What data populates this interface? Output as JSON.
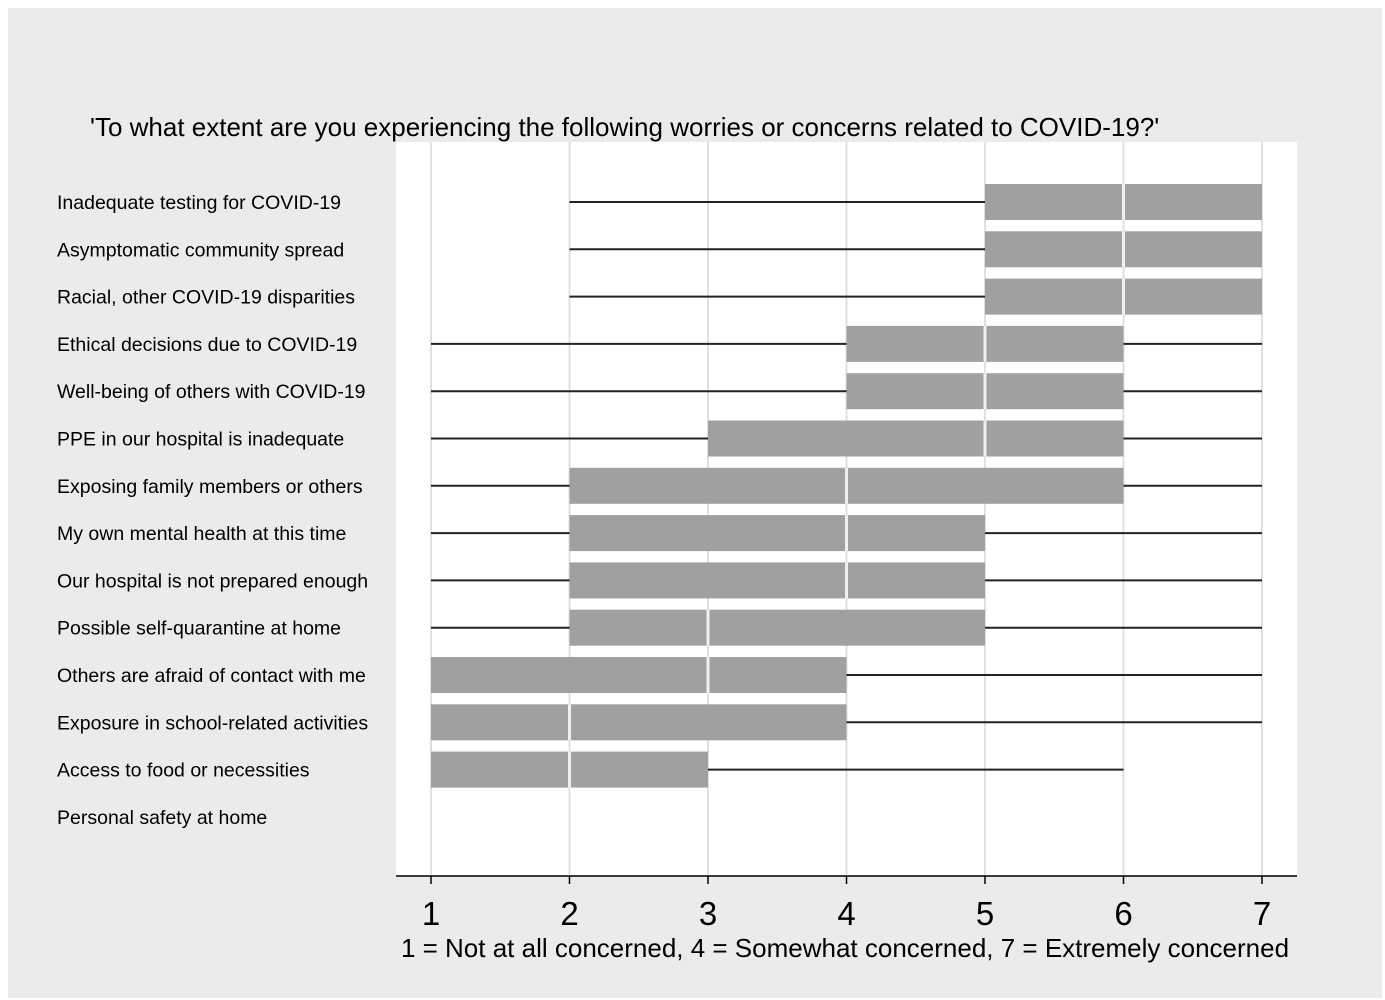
{
  "chart_data": {
    "type": "box",
    "title": "'To what extent are you experiencing the following worries or concerns related to COVID-19?'",
    "xlabel": "1 = Not at all concerned, 4 = Somewhat concerned, 7 = Extremely concerned",
    "xlim": [
      1,
      7
    ],
    "xticks": [
      "1",
      "2",
      "3",
      "4",
      "5",
      "6",
      "7"
    ],
    "grid": true,
    "box_color": "#a0a0a0",
    "items": [
      {
        "label": "Inadequate testing for COVID-19",
        "min": 2,
        "q1": 5,
        "median": 6,
        "q3": 7,
        "max": 7
      },
      {
        "label": "Asymptomatic community spread",
        "min": 2,
        "q1": 5,
        "median": 6,
        "q3": 7,
        "max": 7
      },
      {
        "label": "Racial, other COVID-19 disparities",
        "min": 2,
        "q1": 5,
        "median": 6,
        "q3": 7,
        "max": 7
      },
      {
        "label": "Ethical decisions due to COVID-19",
        "min": 1,
        "q1": 4,
        "median": 5,
        "q3": 6,
        "max": 7
      },
      {
        "label": "Well-being of others with COVID-19",
        "min": 1,
        "q1": 4,
        "median": 5,
        "q3": 6,
        "max": 7
      },
      {
        "label": "PPE in our hospital is inadequate",
        "min": 1,
        "q1": 3,
        "median": 5,
        "q3": 6,
        "max": 7
      },
      {
        "label": "Exposing family members or others",
        "min": 1,
        "q1": 2,
        "median": 4,
        "q3": 6,
        "max": 7
      },
      {
        "label": "My own mental health at this time",
        "min": 1,
        "q1": 2,
        "median": 4,
        "q3": 5,
        "max": 7
      },
      {
        "label": "Our hospital is not prepared enough",
        "min": 1,
        "q1": 2,
        "median": 4,
        "q3": 5,
        "max": 7
      },
      {
        "label": "Possible self-quarantine at home",
        "min": 1,
        "q1": 2,
        "median": 3,
        "q3": 5,
        "max": 7
      },
      {
        "label": "Others are afraid of contact with me",
        "min": 1,
        "q1": 1,
        "median": 3,
        "q3": 4,
        "max": 7
      },
      {
        "label": "Exposure in school-related activities",
        "min": 1,
        "q1": 1,
        "median": 2,
        "q3": 4,
        "max": 7
      },
      {
        "label": "Access to food or necessities",
        "min": 1,
        "q1": 1,
        "median": 2,
        "q3": 3,
        "max": 6
      },
      {
        "label": "Personal safety at home",
        "min": 1,
        "q1": 1,
        "median": 1,
        "q3": 1,
        "max": 1
      }
    ]
  }
}
